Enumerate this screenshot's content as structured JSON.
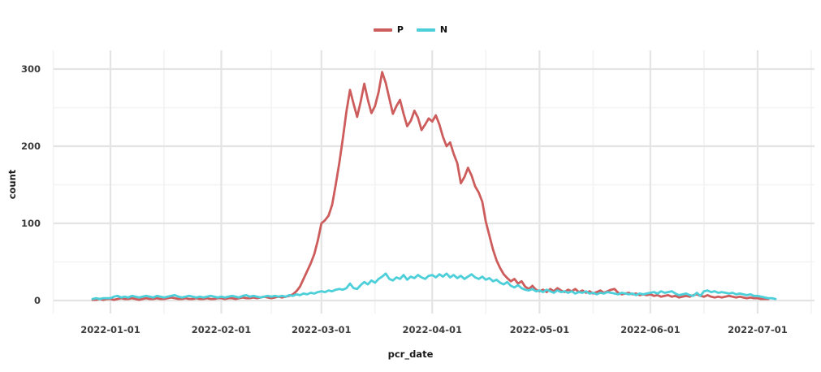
{
  "figure": {
    "background": "#ffffff",
    "grid": {
      "major_color": "#e4e4e4",
      "minor_color": "#f3f3f3"
    },
    "text_color": "#3c3c3c"
  },
  "chart_data": {
    "type": "line",
    "title": "",
    "xlabel": "pcr_date",
    "ylabel": "count",
    "grid": true,
    "legend_position": "top-center",
    "x_axis": {
      "tick_labels": [
        "2022-01-01",
        "2022-02-01",
        "2022-03-01",
        "2022-04-01",
        "2022-05-01",
        "2022-06-01",
        "2022-07-01"
      ],
      "tick_days": [
        0,
        31,
        59,
        90,
        120,
        151,
        181
      ],
      "minor_tick_days": [
        -16,
        15,
        45,
        74,
        105,
        135,
        166,
        196
      ],
      "lim_days": [
        -16,
        197
      ],
      "day_zero_date": "2022-01-01"
    },
    "y_axis": {
      "tick_labels": [
        "0",
        "100",
        "200",
        "300"
      ],
      "tick_values": [
        0,
        100,
        200,
        300
      ],
      "minor_tick_values": [
        50,
        150,
        250
      ],
      "lim": [
        -17,
        324
      ]
    },
    "series": [
      {
        "name": "P",
        "color": "#cd5c5c",
        "start_date": "2021-12-27",
        "start_day": -5,
        "step_days": 1,
        "values": [
          1,
          1,
          2,
          1,
          2,
          2,
          1,
          2,
          3,
          2,
          2,
          3,
          2,
          1,
          2,
          3,
          2,
          2,
          3,
          2,
          2,
          3,
          4,
          3,
          2,
          2,
          3,
          2,
          2,
          3,
          2,
          2,
          3,
          2,
          2,
          3,
          3,
          2,
          3,
          3,
          2,
          3,
          4,
          3,
          3,
          4,
          3,
          4,
          5,
          4,
          3,
          4,
          5,
          4,
          5,
          6,
          8,
          12,
          18,
          28,
          38,
          48,
          60,
          78,
          100,
          104,
          110,
          124,
          150,
          178,
          210,
          245,
          273,
          255,
          238,
          258,
          281,
          260,
          243,
          252,
          270,
          296,
          282,
          262,
          242,
          252,
          260,
          242,
          226,
          233,
          246,
          237,
          221,
          228,
          236,
          232,
          240,
          228,
          212,
          200,
          205,
          190,
          178,
          152,
          160,
          172,
          162,
          148,
          140,
          128,
          102,
          84,
          66,
          52,
          42,
          34,
          29,
          25,
          28,
          22,
          25,
          18,
          15,
          19,
          14,
          12,
          14,
          11,
          15,
          12,
          16,
          13,
          11,
          14,
          12,
          15,
          11,
          13,
          10,
          12,
          9,
          11,
          13,
          10,
          12,
          14,
          15,
          10,
          8,
          9,
          10,
          8,
          9,
          7,
          8,
          7,
          8,
          6,
          7,
          5,
          6,
          7,
          5,
          6,
          4,
          5,
          6,
          5,
          7,
          8,
          6,
          5,
          7,
          5,
          4,
          5,
          4,
          5,
          6,
          5,
          4,
          5,
          4,
          3,
          4,
          3,
          3,
          2,
          2,
          2
        ]
      },
      {
        "name": "N",
        "color": "#4ccfd9",
        "start_date": "2021-12-27",
        "start_day": -5,
        "step_days": 1,
        "values": [
          2,
          3,
          2,
          3,
          3,
          3,
          5,
          6,
          4,
          5,
          4,
          6,
          5,
          4,
          5,
          6,
          5,
          4,
          6,
          5,
          4,
          5,
          6,
          7,
          5,
          4,
          5,
          6,
          5,
          4,
          5,
          4,
          5,
          6,
          5,
          4,
          5,
          4,
          5,
          6,
          5,
          4,
          6,
          7,
          5,
          6,
          5,
          4,
          5,
          6,
          5,
          6,
          5,
          6,
          5,
          7,
          6,
          8,
          7,
          9,
          8,
          10,
          9,
          11,
          12,
          11,
          13,
          12,
          14,
          15,
          14,
          16,
          22,
          16,
          15,
          20,
          24,
          21,
          26,
          23,
          28,
          31,
          35,
          28,
          26,
          30,
          28,
          33,
          27,
          31,
          29,
          33,
          30,
          28,
          32,
          33,
          30,
          34,
          31,
          35,
          30,
          33,
          29,
          32,
          28,
          31,
          34,
          30,
          28,
          31,
          27,
          29,
          25,
          27,
          23,
          21,
          24,
          19,
          17,
          20,
          16,
          14,
          13,
          15,
          12,
          13,
          11,
          14,
          12,
          10,
          13,
          11,
          12,
          10,
          12,
          9,
          11,
          10,
          12,
          9,
          10,
          8,
          10,
          9,
          11,
          10,
          9,
          8,
          10,
          9,
          8,
          9,
          7,
          9,
          8,
          9,
          10,
          11,
          9,
          12,
          10,
          11,
          12,
          9,
          7,
          8,
          9,
          7,
          6,
          10,
          6,
          12,
          13,
          11,
          12,
          10,
          11,
          10,
          9,
          10,
          8,
          9,
          8,
          7,
          8,
          6,
          6,
          5,
          4,
          3,
          3,
          2
        ]
      }
    ]
  }
}
